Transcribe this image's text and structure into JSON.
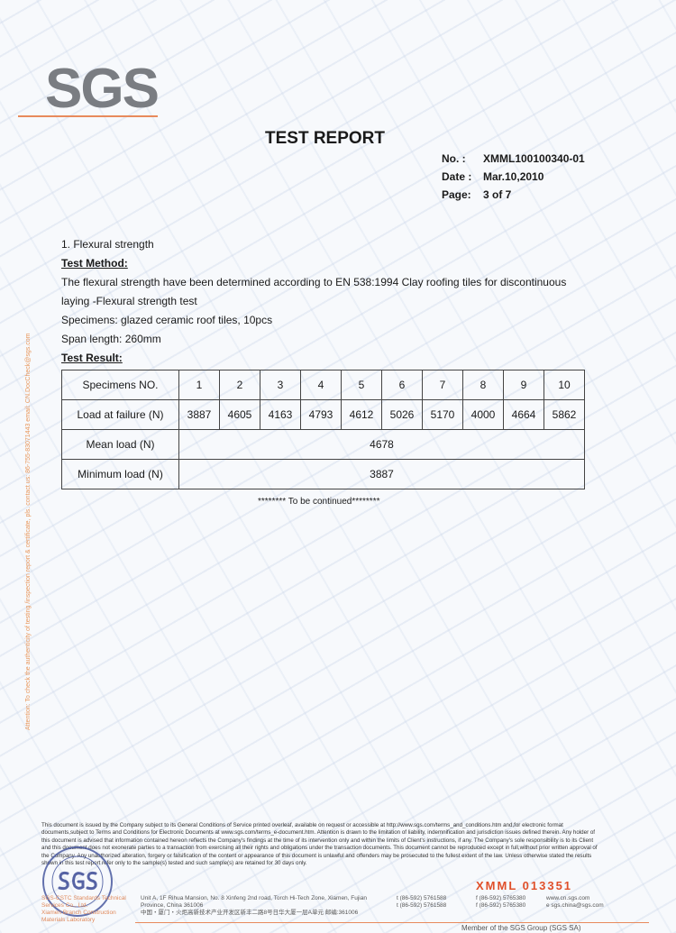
{
  "logo": "SGS",
  "title": "TEST REPORT",
  "meta": {
    "no_label": "No. :",
    "no": "XMML100100340-01",
    "date_label": "Date :",
    "date": "Mar.10,2010",
    "page_label": "Page:",
    "page": "3 of 7"
  },
  "side_note": "Attention: To check the authenticity of testing /inspection report & certificate, pls. contact us: 86-755-83071443 email: CN.DocCheck@sgs.com",
  "section": "1. Flexural strength",
  "method_heading": "Test Method:",
  "method_lines": [
    "The flexural strength have been determined according to EN 538:1994 Clay roofing tiles for discontinuous",
    "laying -Flexural strength test",
    "Specimens: glazed ceramic roof tiles, 10pcs",
    "Span length: 260mm"
  ],
  "result_heading": "Test Result:",
  "table": {
    "header_label": "Specimens NO.",
    "specimens": [
      "1",
      "2",
      "3",
      "4",
      "5",
      "6",
      "7",
      "8",
      "9",
      "10"
    ],
    "load_label": "Load at failure (N)",
    "loads": [
      "3887",
      "4605",
      "4163",
      "4793",
      "4612",
      "5026",
      "5170",
      "4000",
      "4664",
      "5862"
    ],
    "mean_label": "Mean load (N)",
    "mean": "4678",
    "min_label": "Minimum load (N)",
    "min": "3887"
  },
  "continued": "******** To be continued********",
  "footer_text": "This document is issued by the Company subject to its General Conditions of Service printed overleaf, available on request or accessible at http://www.sgs.com/terms_and_conditions.htm and,for electronic format documents,subject to Terms and Conditions for Electronic Documents at www.sgs.com/terms_e-document.htm. Attention is drawn to the limitation of liability, indemnification and jurisdiction issues defined therein. Any holder of this document is advised that information contained hereon reflects the Company's findings at the time of its intervention only and within the limits of Client's instructions, if any. The Company's sole responsibility is to its Client and this document does not exonerate parties to a transaction from exercising all their rights and obligations under the transaction documents. This document cannot be reproduced except in full,without prior written approval of the Company. Any unauthorized alteration, forgery or falsification of the content or appearance of this document is unlawful and offenders may be prosecuted to the fullest extent of the law. Unless otherwise stated the results shown in this test report refer only to the sample(s) tested and such sample(s) are retained for 30 days only.",
  "stamp": "SGS",
  "serial": "XMML 013351",
  "company": [
    "SGS-CSTC Standards Technical Services Co., Ltd.",
    "Xiamen Branch Construction Materials Laboratory"
  ],
  "address": [
    "Unit A, 1F Rihua Mansion, No. 8 Xinfeng 2nd road, Torch Hi-Tech Zone, Xiamen, Fujian Province, China 361006",
    "中国・厦门・火炬高新技术产业开发区新丰二路8号日华大厦一层A单元 邮编:361006"
  ],
  "tel": [
    "t (86-592) 5761588",
    "t (86-592) 5761588"
  ],
  "fax": [
    "f (86-592) 5765380",
    "f (86-592) 5765380"
  ],
  "web": [
    "www.cn.sgs.com",
    "e sgs.china@sgs.com"
  ],
  "member": "Member of the SGS Group (SGS SA)"
}
